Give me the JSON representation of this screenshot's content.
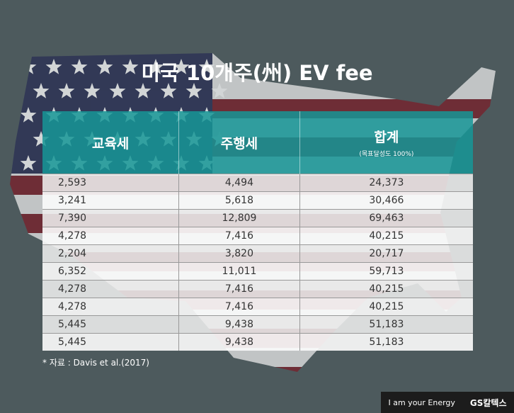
{
  "title": "미국 10개주(州) EV fee",
  "table": {
    "header": [
      "교육세",
      "주행세",
      "합계"
    ],
    "header_note": "(목표달성도 100%)",
    "rows": [
      [
        "2,593",
        "4,494",
        "24,373"
      ],
      [
        "3,241",
        "5,618",
        "30,466"
      ],
      [
        "7,390",
        "12,809",
        "69,463"
      ],
      [
        "4,278",
        "7,416",
        "40,215"
      ],
      [
        "2,204",
        "3,820",
        "20,717"
      ],
      [
        "6,352",
        "11,011",
        "59,713"
      ],
      [
        "4,278",
        "7,416",
        "40,215"
      ],
      [
        "4,278",
        "7,416",
        "40,215"
      ],
      [
        "5,445",
        "9,438",
        "51,183"
      ],
      [
        "5,445",
        "9,438",
        "51,183"
      ]
    ]
  },
  "source": "* 자료 : Davis et al.(2017)",
  "footer": {
    "slogan": "I am your Energy",
    "brand": "GS칼텍스"
  }
}
